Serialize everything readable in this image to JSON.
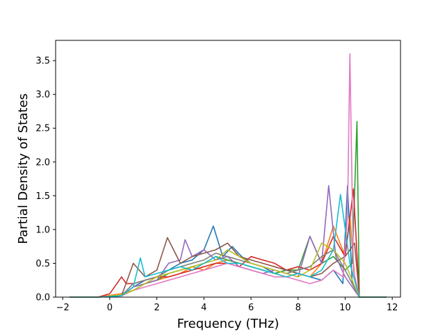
{
  "chart_data": {
    "type": "line",
    "title": "",
    "xlabel": "Frequency (THz)",
    "ylabel": "Partial Density of States",
    "xlim": [
      -2.3,
      12.35
    ],
    "ylim": [
      0.0,
      3.8
    ],
    "xticks": [
      -2,
      0,
      2,
      4,
      6,
      8,
      10,
      12
    ],
    "xtick_labels": [
      "−2",
      "0",
      "2",
      "4",
      "6",
      "8",
      "10",
      "12"
    ],
    "yticks": [
      0.0,
      0.5,
      1.0,
      1.5,
      2.0,
      2.5,
      3.0,
      3.5
    ],
    "ytick_labels": [
      "0.0",
      "0.5",
      "1.0",
      "1.5",
      "2.0",
      "2.5",
      "3.0",
      "3.5"
    ],
    "grid": false,
    "legend": "none",
    "colors": [
      "#1f77b4",
      "#ff7f0e",
      "#2ca02c",
      "#d62728",
      "#9467bd",
      "#8c564b",
      "#e377c2",
      "#7f7f7f",
      "#bcbd22",
      "#17becf"
    ],
    "baseline_x_range": [
      -1.7,
      11.75
    ],
    "series": [
      {
        "color": "#1f77b4",
        "x": [
          -0.5,
          0.5,
          1.0,
          1.5,
          2.0,
          2.5,
          3.0,
          3.5,
          4.0,
          4.4,
          4.8,
          5.2,
          5.6,
          6.0,
          6.5,
          7.0,
          7.5,
          8.0,
          8.5,
          9.0,
          9.5,
          9.9,
          10.1,
          10.3,
          10.6
        ],
        "y": [
          0.0,
          0.02,
          0.15,
          0.25,
          0.3,
          0.4,
          0.5,
          0.55,
          0.7,
          1.05,
          0.6,
          0.75,
          0.6,
          0.5,
          0.45,
          0.35,
          0.4,
          0.35,
          0.3,
          0.25,
          0.4,
          0.2,
          1.65,
          0.2,
          0.0
        ]
      },
      {
        "color": "#ff7f0e",
        "x": [
          -0.5,
          0.5,
          1.0,
          1.5,
          2.0,
          2.5,
          3.0,
          3.5,
          4.0,
          4.5,
          5.0,
          5.5,
          6.0,
          6.5,
          7.0,
          7.5,
          8.0,
          8.5,
          9.0,
          9.5,
          10.0,
          10.2,
          10.4,
          10.6
        ],
        "y": [
          0.0,
          0.05,
          0.1,
          0.2,
          0.25,
          0.3,
          0.35,
          0.45,
          0.4,
          0.5,
          0.55,
          0.5,
          0.45,
          0.4,
          0.35,
          0.3,
          0.35,
          0.3,
          0.5,
          1.05,
          0.6,
          1.2,
          0.3,
          0.0
        ]
      },
      {
        "color": "#2ca02c",
        "x": [
          -0.5,
          0.5,
          1.0,
          1.5,
          2.0,
          2.5,
          3.0,
          3.5,
          4.0,
          4.5,
          5.0,
          5.5,
          6.0,
          6.5,
          7.0,
          7.5,
          8.0,
          8.5,
          9.0,
          9.5,
          10.0,
          10.3,
          10.5,
          10.6
        ],
        "y": [
          0.0,
          0.03,
          0.1,
          0.2,
          0.25,
          0.35,
          0.4,
          0.45,
          0.5,
          0.6,
          0.55,
          0.5,
          0.45,
          0.4,
          0.35,
          0.4,
          0.4,
          0.9,
          0.5,
          0.6,
          0.4,
          0.5,
          2.6,
          0.0
        ]
      },
      {
        "color": "#d62728",
        "x": [
          -0.5,
          0.0,
          0.5,
          0.7,
          1.0,
          1.5,
          2.0,
          2.5,
          3.0,
          3.5,
          4.0,
          4.5,
          5.0,
          5.5,
          6.0,
          6.5,
          7.0,
          7.5,
          8.0,
          8.5,
          9.0,
          9.5,
          10.0,
          10.35,
          10.6
        ],
        "y": [
          0.0,
          0.05,
          0.3,
          0.2,
          0.2,
          0.25,
          0.3,
          0.3,
          0.35,
          0.4,
          0.45,
          0.5,
          0.5,
          0.45,
          0.6,
          0.55,
          0.5,
          0.4,
          0.45,
          0.4,
          0.5,
          0.9,
          0.6,
          1.6,
          0.0
        ]
      },
      {
        "color": "#9467bd",
        "x": [
          -0.5,
          0.5,
          1.0,
          1.5,
          2.0,
          2.5,
          3.0,
          3.2,
          3.5,
          4.0,
          4.5,
          5.0,
          5.5,
          6.0,
          6.5,
          7.0,
          7.5,
          8.0,
          8.5,
          9.0,
          9.3,
          9.6,
          10.0,
          10.6
        ],
        "y": [
          0.0,
          0.02,
          0.15,
          0.2,
          0.25,
          0.5,
          0.55,
          0.85,
          0.6,
          0.7,
          0.55,
          0.6,
          0.45,
          0.4,
          0.35,
          0.4,
          0.35,
          0.3,
          0.9,
          0.5,
          1.65,
          0.6,
          0.3,
          0.0
        ]
      },
      {
        "color": "#8c564b",
        "x": [
          -0.5,
          0.5,
          1.0,
          1.5,
          2.0,
          2.45,
          3.0,
          3.5,
          4.0,
          4.5,
          5.0,
          5.5,
          6.0,
          6.5,
          7.0,
          7.5,
          8.0,
          8.5,
          9.0,
          9.5,
          10.0,
          10.4,
          10.6
        ],
        "y": [
          0.0,
          0.02,
          0.5,
          0.3,
          0.4,
          0.88,
          0.5,
          0.6,
          0.65,
          0.7,
          0.8,
          0.6,
          0.55,
          0.5,
          0.45,
          0.4,
          0.35,
          0.3,
          0.35,
          0.5,
          0.6,
          0.8,
          0.0
        ]
      },
      {
        "color": "#e377c2",
        "x": [
          -0.5,
          0.5,
          1.0,
          1.5,
          2.0,
          2.5,
          3.0,
          3.5,
          4.0,
          4.5,
          5.0,
          5.5,
          6.0,
          6.5,
          7.0,
          7.5,
          8.0,
          8.5,
          9.0,
          9.5,
          9.9,
          10.1,
          10.2,
          10.35,
          10.6
        ],
        "y": [
          0.0,
          0.02,
          0.1,
          0.15,
          0.2,
          0.25,
          0.3,
          0.35,
          0.4,
          0.45,
          0.5,
          0.45,
          0.4,
          0.35,
          0.3,
          0.3,
          0.25,
          0.2,
          0.25,
          0.4,
          0.3,
          1.2,
          3.6,
          0.4,
          0.0
        ]
      },
      {
        "color": "#7f7f7f",
        "x": [
          -0.5,
          0.5,
          1.0,
          1.5,
          2.0,
          2.5,
          3.0,
          3.5,
          4.0,
          4.5,
          5.0,
          5.5,
          6.0,
          6.5,
          7.0,
          7.5,
          8.0,
          8.5,
          9.0,
          9.5,
          10.0,
          10.6
        ],
        "y": [
          0.0,
          0.02,
          0.2,
          0.25,
          0.3,
          0.4,
          0.45,
          0.5,
          0.55,
          0.65,
          0.6,
          0.55,
          0.5,
          0.45,
          0.4,
          0.35,
          0.4,
          0.45,
          0.6,
          0.7,
          0.4,
          0.0
        ]
      },
      {
        "color": "#bcbd22",
        "x": [
          -0.5,
          0.5,
          1.0,
          1.5,
          2.0,
          2.5,
          3.0,
          3.5,
          4.0,
          4.5,
          5.0,
          5.5,
          6.0,
          6.5,
          7.0,
          7.5,
          8.0,
          8.5,
          9.0,
          9.5,
          10.0,
          10.6
        ],
        "y": [
          0.0,
          0.03,
          0.1,
          0.2,
          0.3,
          0.35,
          0.4,
          0.45,
          0.5,
          0.55,
          0.7,
          0.6,
          0.5,
          0.45,
          0.4,
          0.35,
          0.3,
          0.4,
          0.8,
          0.7,
          0.5,
          0.0
        ]
      },
      {
        "color": "#17becf",
        "x": [
          -0.5,
          0.5,
          1.0,
          1.3,
          1.5,
          2.0,
          2.5,
          3.0,
          3.5,
          4.0,
          4.5,
          5.0,
          5.5,
          6.0,
          6.5,
          7.0,
          7.5,
          8.0,
          8.5,
          9.0,
          9.5,
          9.8,
          10.2,
          10.6
        ],
        "y": [
          0.0,
          0.02,
          0.15,
          0.58,
          0.3,
          0.35,
          0.4,
          0.45,
          0.4,
          0.5,
          0.6,
          0.5,
          0.5,
          0.45,
          0.4,
          0.35,
          0.3,
          0.35,
          0.3,
          0.4,
          0.7,
          1.52,
          0.5,
          0.0
        ]
      }
    ]
  }
}
